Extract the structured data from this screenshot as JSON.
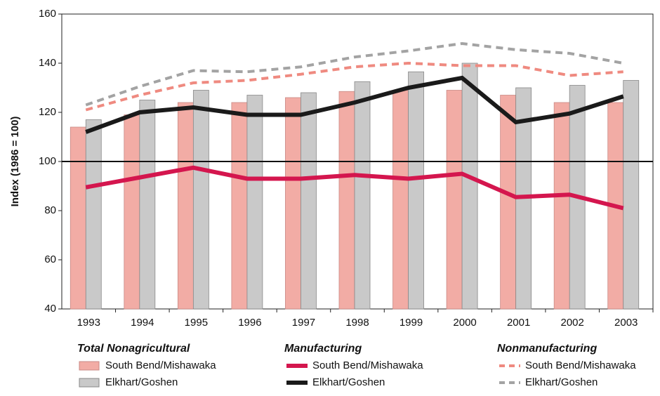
{
  "chart_data": {
    "type": "bar",
    "ylabel": "Index (1986 = 100)",
    "categories": [
      "1993",
      "1994",
      "1995",
      "1996",
      "1997",
      "1998",
      "1999",
      "2000",
      "2001",
      "2002",
      "2003"
    ],
    "ylim": [
      40,
      160
    ],
    "yticks": [
      40,
      60,
      80,
      100,
      120,
      140,
      160
    ],
    "reference_line": 100,
    "grid": false,
    "groups": [
      {
        "title": "Total Nonagricultural",
        "kind": "bar",
        "series": [
          {
            "name": "South Bend/Mishawaka",
            "color": "#f2aca5",
            "values": [
              114,
              119,
              124,
              124,
              126,
              128.5,
              129,
              129,
              127,
              124,
              124
            ]
          },
          {
            "name": "Elkhart/Goshen",
            "color": "#c9c9c9",
            "values": [
              117,
              125,
              129,
              127,
              128,
              132.5,
              136.5,
              140,
              130,
              131,
              133
            ]
          }
        ]
      },
      {
        "title": "Manufacturing",
        "kind": "line",
        "dash": false,
        "series": [
          {
            "name": "South Bend/Mishawaka",
            "color": "#d4164e",
            "values": [
              89.5,
              93.5,
              97.5,
              93,
              93,
              94.5,
              93,
              95,
              85.5,
              86.5,
              81
            ]
          },
          {
            "name": "Elkhart/Goshen",
            "color": "#1a1a1a",
            "values": [
              112,
              120,
              122,
              119,
              119,
              124,
              130,
              134,
              116,
              119.5,
              126.5
            ]
          }
        ]
      },
      {
        "title": "Nonmanufacturing",
        "kind": "line",
        "dash": true,
        "series": [
          {
            "name": "South Bend/Mishawaka",
            "color": "#ef8a80",
            "values": [
              121,
              127,
              132,
              133,
              135.5,
              138.5,
              140,
              139,
              139,
              135,
              136.5
            ]
          },
          {
            "name": "Elkhart/Goshen",
            "color": "#a3a3a3",
            "values": [
              123,
              130.5,
              137,
              136.5,
              138.5,
              142.5,
              145,
              148,
              145.5,
              144,
              140
            ]
          }
        ]
      }
    ]
  }
}
